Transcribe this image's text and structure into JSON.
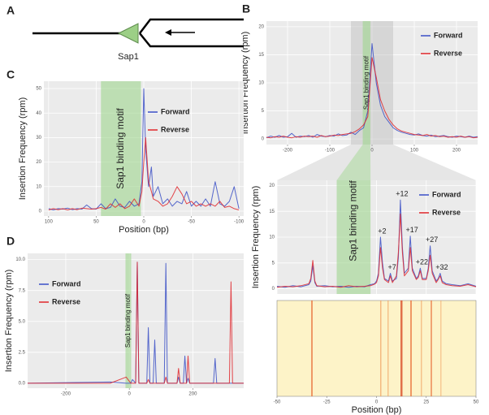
{
  "panels": [
    "A",
    "B",
    "C",
    "D"
  ],
  "diagram": {
    "label": "Sap1"
  },
  "chart_data": [
    {
      "type": "line",
      "y_label": "Insertion Frequency (rpm)",
      "xlim": [
        -250,
        250
      ],
      "ylim": [
        -1,
        21
      ],
      "xticks": [
        -200,
        -100,
        0,
        100,
        200
      ],
      "yticks": [
        0,
        5,
        10,
        15,
        20
      ],
      "grid": true,
      "legend": "top-right",
      "shade_xrange": [
        -50,
        50
      ],
      "highlight": {
        "label": "Sap1 binding motif",
        "xrange": [
          -22,
          -4
        ]
      },
      "x": [
        -250,
        -240,
        -230,
        -220,
        -210,
        -200,
        -190,
        -180,
        -170,
        -160,
        -150,
        -140,
        -130,
        -120,
        -110,
        -100,
        -90,
        -80,
        -70,
        -60,
        -50,
        -40,
        -30,
        -20,
        -10,
        0,
        10,
        20,
        30,
        40,
        50,
        60,
        70,
        80,
        90,
        100,
        110,
        120,
        130,
        140,
        150,
        160,
        170,
        180,
        190,
        200,
        210,
        220,
        230,
        240,
        250
      ],
      "series": [
        {
          "name": "Forward",
          "color": "#3a4fc6",
          "values": [
            0.2,
            0.5,
            0.3,
            0.6,
            0.3,
            0.4,
            1.0,
            0.3,
            0.5,
            0.4,
            0.6,
            0.3,
            0.8,
            0.5,
            0.4,
            0.6,
            0.5,
            0.9,
            0.6,
            0.7,
            1.2,
            0.8,
            1.5,
            2.0,
            5.0,
            17.0,
            10.0,
            6.0,
            4.0,
            3.0,
            2.0,
            1.5,
            1.2,
            1.0,
            0.8,
            0.7,
            0.9,
            0.6,
            0.5,
            0.7,
            0.4,
            0.5,
            0.6,
            0.4,
            0.3,
            0.5,
            0.4,
            0.3,
            0.5,
            0.3,
            0.4
          ]
        },
        {
          "name": "Reverse",
          "color": "#e0262b",
          "values": [
            0.3,
            0.2,
            0.4,
            0.3,
            0.5,
            0.3,
            0.2,
            0.4,
            0.3,
            0.5,
            0.4,
            0.5,
            0.3,
            0.6,
            0.4,
            0.5,
            0.7,
            0.6,
            0.8,
            0.9,
            1.0,
            1.3,
            1.8,
            2.5,
            4.0,
            14.5,
            11.0,
            7.0,
            5.0,
            3.5,
            2.5,
            1.8,
            1.4,
            1.2,
            1.0,
            0.8,
            0.7,
            0.6,
            0.8,
            0.5,
            0.6,
            0.4,
            0.5,
            0.3,
            0.4,
            0.3,
            0.5,
            0.3,
            0.4,
            0.2,
            0.3
          ]
        }
      ]
    },
    {
      "type": "line",
      "y_label": "Insertion Frequency (rpm)",
      "x_label": "Position (bp)",
      "xlim": [
        -50,
        50
      ],
      "ylim": [
        -1,
        21
      ],
      "xticks": [
        -50,
        -25,
        0,
        25,
        50
      ],
      "yticks": [
        0,
        5,
        10,
        15,
        20
      ],
      "grid": true,
      "legend": "top-right",
      "highlight": {
        "label": "Sap1 binding motif",
        "xrange": [
          -20,
          -3
        ]
      },
      "annotations": [
        {
          "label": "+2",
          "x": 2
        },
        {
          "label": "+7",
          "x": 7
        },
        {
          "label": "+12",
          "x": 12
        },
        {
          "label": "+17",
          "x": 17
        },
        {
          "label": "+22",
          "x": 22
        },
        {
          "label": "+27",
          "x": 27
        },
        {
          "label": "+32",
          "x": 32
        }
      ],
      "x": [
        -50,
        -46,
        -42,
        -38,
        -34,
        -33,
        -32,
        -31,
        -30,
        -26,
        -22,
        -18,
        -14,
        -10,
        -6,
        -3,
        -1,
        0,
        1,
        2,
        3,
        4,
        6,
        7,
        8,
        10,
        11,
        12,
        13,
        14,
        16,
        17,
        18,
        20,
        21,
        22,
        23,
        25,
        26,
        27,
        28,
        30,
        31,
        32,
        33,
        35,
        38,
        42,
        46,
        50
      ],
      "series": [
        {
          "name": "Forward",
          "color": "#3a4fc6",
          "values": [
            0.5,
            0.3,
            0.6,
            0.4,
            0.8,
            1.5,
            4.5,
            1.2,
            0.5,
            0.6,
            0.4,
            0.5,
            0.3,
            0.5,
            0.4,
            0.8,
            1.0,
            1.5,
            3.0,
            10.0,
            5.0,
            2.0,
            1.5,
            3.0,
            1.5,
            2.0,
            6.0,
            17.2,
            8.0,
            3.0,
            4.0,
            10.2,
            4.0,
            2.0,
            2.5,
            4.0,
            2.0,
            2.0,
            4.0,
            8.3,
            3.5,
            1.5,
            2.0,
            3.0,
            1.5,
            1.0,
            0.8,
            0.6,
            1.0,
            0.5
          ]
        },
        {
          "name": "Reverse",
          "color": "#e0262b",
          "values": [
            0.3,
            0.5,
            0.4,
            0.6,
            1.0,
            2.0,
            5.5,
            1.5,
            0.6,
            0.4,
            0.5,
            0.3,
            0.6,
            0.4,
            0.5,
            0.6,
            0.9,
            1.2,
            2.5,
            8.0,
            4.0,
            1.8,
            1.2,
            2.5,
            1.2,
            2.5,
            7.0,
            14.5,
            7.0,
            2.5,
            3.5,
            8.0,
            3.5,
            1.8,
            2.2,
            3.5,
            1.8,
            1.8,
            3.5,
            6.5,
            3.0,
            1.2,
            1.8,
            2.5,
            1.2,
            0.8,
            0.6,
            0.5,
            0.8,
            0.4
          ]
        }
      ]
    },
    {
      "type": "line",
      "y_label": "Insertion Frequency (rpm)",
      "x_label": "Position (bp)",
      "xlim": [
        105,
        -105
      ],
      "ylim": [
        -2,
        53
      ],
      "xticks": [
        100,
        50,
        0,
        -50,
        -100
      ],
      "yticks": [
        0,
        10,
        20,
        30,
        40,
        50
      ],
      "grid": true,
      "legend": "center",
      "highlight": {
        "label": "Sap1 binding motif",
        "xrange": [
          45,
          3
        ]
      },
      "x": [
        100,
        95,
        90,
        85,
        80,
        75,
        70,
        65,
        60,
        55,
        50,
        45,
        40,
        35,
        30,
        25,
        20,
        15,
        10,
        5,
        2,
        0,
        -2,
        -5,
        -8,
        -10,
        -15,
        -20,
        -25,
        -30,
        -35,
        -40,
        -45,
        -50,
        -55,
        -60,
        -65,
        -70,
        -75,
        -80,
        -85,
        -90,
        -95,
        -100
      ],
      "series": [
        {
          "name": "Forward",
          "color": "#3a4fc6",
          "values": [
            1,
            0.5,
            1,
            0.8,
            1.2,
            0.6,
            1,
            0.8,
            2.5,
            1,
            0.8,
            3,
            1,
            1.5,
            5,
            2,
            1.5,
            4,
            2,
            3,
            12,
            50,
            25,
            10,
            18,
            6,
            10,
            3,
            5,
            2,
            4,
            3,
            8,
            2,
            4,
            2,
            5,
            2,
            12,
            3,
            2,
            4,
            10,
            1
          ]
        },
        {
          "name": "Reverse",
          "color": "#e0262b",
          "values": [
            0.5,
            1,
            0.6,
            1,
            0.5,
            1,
            0.6,
            1.2,
            1,
            0.8,
            1,
            1.5,
            0.8,
            3,
            1.5,
            3,
            1,
            2,
            5,
            2,
            8,
            20,
            30,
            12,
            8,
            5,
            4,
            2,
            3,
            6,
            10,
            7,
            3,
            4,
            2,
            3,
            2,
            3,
            2,
            4,
            1.5,
            2,
            1,
            0.5
          ]
        }
      ]
    },
    {
      "type": "line",
      "y_label": "Insertion Frequency (rpm)",
      "xlim": [
        -320,
        360
      ],
      "ylim": [
        -0.4,
        10.5
      ],
      "xticks": [
        -200,
        0,
        200
      ],
      "yticks": [
        {
          "value": 0,
          "label": "0.0"
        },
        {
          "value": 2.5,
          "label": "2.5"
        },
        {
          "value": 5,
          "label": "5.0"
        },
        {
          "value": 7.5,
          "label": "7.5"
        },
        {
          "value": 10,
          "label": "10.0"
        }
      ],
      "grid": true,
      "legend": "top-left",
      "highlight": {
        "label": "Sap1 binding motif",
        "xrange": [
          -12,
          6
        ]
      },
      "x": [
        -320,
        -60,
        -10,
        5,
        10,
        20,
        25,
        30,
        55,
        60,
        65,
        75,
        80,
        85,
        110,
        115,
        120,
        150,
        155,
        160,
        170,
        175,
        180,
        185,
        190,
        265,
        270,
        275,
        315,
        320,
        325,
        360
      ],
      "series": [
        {
          "name": "Forward",
          "color": "#3a4fc6",
          "values": [
            0,
            0.1,
            0,
            0,
            0.3,
            0,
            9.8,
            0,
            0,
            4.5,
            0,
            0,
            3.5,
            0,
            0,
            9.7,
            0,
            0,
            0.5,
            0,
            0,
            2.2,
            0,
            0.4,
            0,
            0,
            2.0,
            0,
            0,
            0,
            0,
            0
          ]
        },
        {
          "name": "Reverse",
          "color": "#e0262b",
          "values": [
            0,
            0,
            0.5,
            0,
            0,
            0,
            9.8,
            0,
            0,
            0.3,
            0,
            0,
            0,
            0,
            0,
            0.5,
            0,
            0,
            1.2,
            0,
            0,
            0,
            0,
            2.2,
            0,
            0,
            0,
            0,
            0,
            8.2,
            0,
            0
          ]
        }
      ]
    }
  ]
}
